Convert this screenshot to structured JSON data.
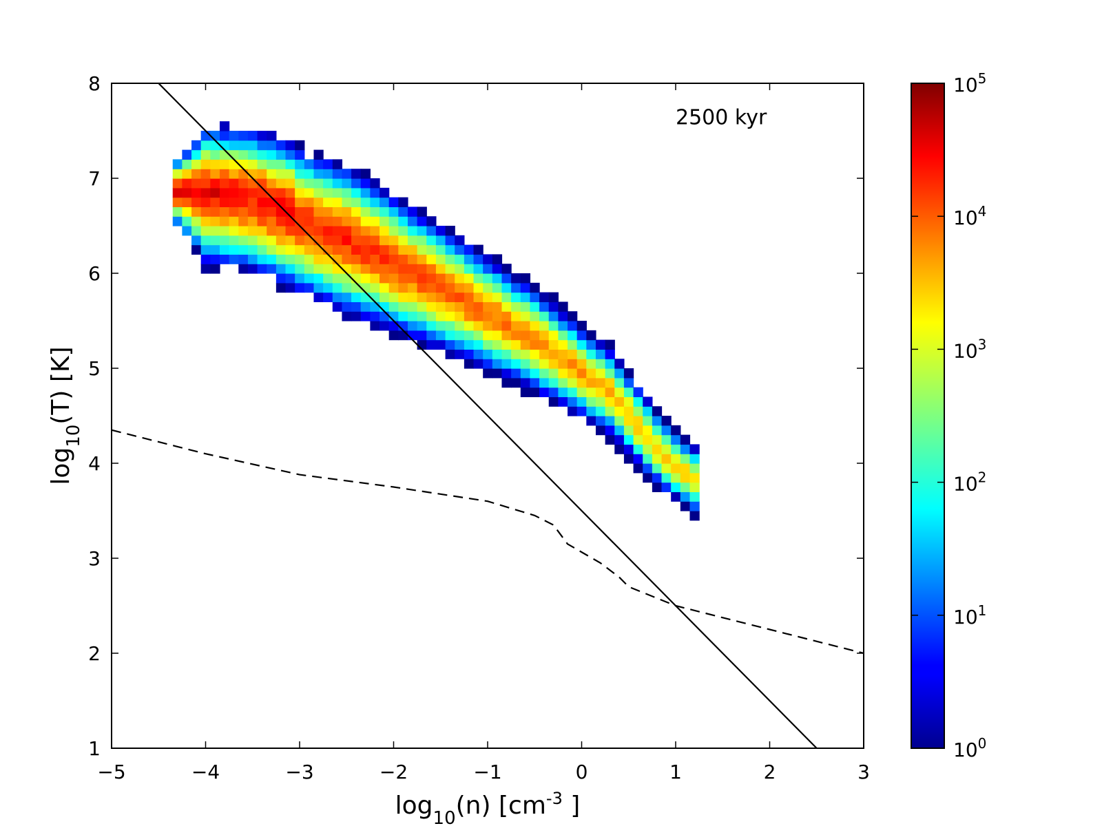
{
  "chart_data": {
    "type": "heatmap",
    "annotation": "2500 kyr",
    "xlabel": {
      "base": "log",
      "sub": "10",
      "mid": "(n) [cm",
      "sup": "-3",
      "end": " ]"
    },
    "ylabel": {
      "base": "log",
      "sub": "10",
      "end": "(T) [K]"
    },
    "xlim": [
      -5,
      3
    ],
    "ylim": [
      1,
      8
    ],
    "xticks": [
      -5,
      -4,
      -3,
      -2,
      -1,
      0,
      1,
      2,
      3
    ],
    "xtick_labels": [
      "−5",
      "−4",
      "−3",
      "−2",
      "−1",
      "0",
      "1",
      "2",
      "3"
    ],
    "yticks": [
      1,
      2,
      3,
      4,
      5,
      6,
      7,
      8
    ],
    "ytick_labels": [
      "1",
      "2",
      "3",
      "4",
      "5",
      "6",
      "7",
      "8"
    ],
    "grid": false,
    "colorbar": {
      "scale": "log",
      "range": [
        1,
        100000
      ],
      "colormap": "jet",
      "tick_values": [
        1,
        10,
        100,
        1000,
        10000,
        100000
      ],
      "tick_labels": [
        {
          "base": "10",
          "exp": "0"
        },
        {
          "base": "10",
          "exp": "1"
        },
        {
          "base": "10",
          "exp": "2"
        },
        {
          "base": "10",
          "exp": "3"
        },
        {
          "base": "10",
          "exp": "4"
        },
        {
          "base": "10",
          "exp": "5"
        }
      ]
    },
    "heatmap_cell_size": {
      "dlogn": 0.1,
      "dlogT": 0.1
    },
    "heatmap_region": {
      "spine": [
        {
          "x": -4.35,
          "y": 6.85
        },
        {
          "x": -3.5,
          "y": 6.75
        },
        {
          "x": -2.5,
          "y": 6.35
        },
        {
          "x": -1.5,
          "y": 5.85
        },
        {
          "x": -0.5,
          "y": 5.3
        },
        {
          "x": 0.3,
          "y": 4.75
        },
        {
          "x": 0.85,
          "y": 4.1
        },
        {
          "x": 1.3,
          "y": 3.75
        }
      ],
      "peak_log10_count": 4.2
    },
    "lines": [
      {
        "name": "solid",
        "style": "solid",
        "x": [
          -4.5,
          2.5
        ],
        "y": [
          8.0,
          1.0
        ]
      },
      {
        "name": "dashed",
        "style": "dashed",
        "x": [
          -5.0,
          -4.0,
          -3.0,
          -2.0,
          -1.0,
          -0.5,
          -0.3,
          -0.15,
          0.2,
          0.4,
          0.5,
          1.0,
          2.0,
          3.0
        ],
        "y": [
          4.35,
          4.1,
          3.88,
          3.75,
          3.6,
          3.45,
          3.35,
          3.15,
          2.95,
          2.8,
          2.7,
          2.5,
          2.25,
          2.0
        ]
      }
    ]
  }
}
